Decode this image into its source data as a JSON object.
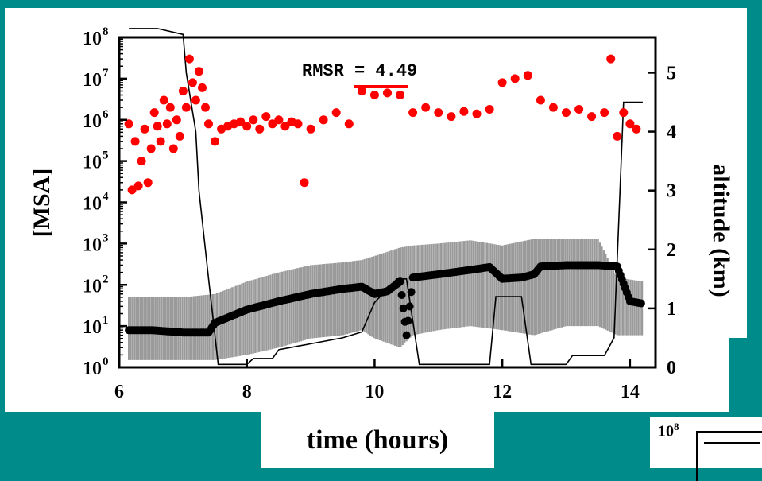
{
  "colors": {
    "background": "#008b8b",
    "panel": "#ffffff",
    "msa_points": "#ff0000",
    "model": "#000000",
    "uncertainty_band": "#9a9a9a",
    "altitude_line": "#000000"
  },
  "xlabel": "time (hours)",
  "inset_label": "10",
  "inset_label_exp": "8",
  "chart_data": {
    "type": "scatter",
    "title": "",
    "xlabel": "time (hours)",
    "ylabel_left": "[MSA]",
    "ylabel_right": "altitude (km)",
    "annotation": "RMSR = 4.49",
    "xlim": [
      6,
      14.4
    ],
    "ylim_left": [
      1,
      100000000
    ],
    "yscale_left": "log",
    "ylim_right": [
      0,
      5.6
    ],
    "x_ticks": [
      "6",
      "8",
      "10",
      "12",
      "14"
    ],
    "x_tick_values": [
      6,
      8,
      10,
      12,
      14
    ],
    "y_left_ticks": [
      {
        "base": "10",
        "exp": "0",
        "value": 1
      },
      {
        "base": "10",
        "exp": "1",
        "value": 10
      },
      {
        "base": "10",
        "exp": "2",
        "value": 100
      },
      {
        "base": "10",
        "exp": "3",
        "value": 1000
      },
      {
        "base": "10",
        "exp": "4",
        "value": 10000
      },
      {
        "base": "10",
        "exp": "5",
        "value": 100000
      },
      {
        "base": "10",
        "exp": "6",
        "value": 1000000
      },
      {
        "base": "10",
        "exp": "7",
        "value": 10000000
      },
      {
        "base": "10",
        "exp": "8",
        "value": 100000000
      }
    ],
    "y_right_ticks": [
      "0",
      "1",
      "2",
      "3",
      "4",
      "5"
    ],
    "y_right_tick_values": [
      0,
      1,
      2,
      3,
      4,
      5
    ],
    "grid": false,
    "series": [
      {
        "kind": "observed_msa",
        "axis": "left",
        "x": [
          6.15,
          6.2,
          6.25,
          6.3,
          6.35,
          6.4,
          6.45,
          6.5,
          6.55,
          6.6,
          6.65,
          6.7,
          6.75,
          6.8,
          6.85,
          6.9,
          6.95,
          7.0,
          7.05,
          7.1,
          7.15,
          7.2,
          7.25,
          7.3,
          7.35,
          7.4,
          7.5,
          7.6,
          7.7,
          7.8,
          7.9,
          8.0,
          8.1,
          8.2,
          8.3,
          8.4,
          8.5,
          8.6,
          8.7,
          8.8,
          8.9,
          9.0,
          9.2,
          9.4,
          9.6,
          9.8,
          10.0,
          10.2,
          10.4,
          10.6,
          10.8,
          11.0,
          11.2,
          11.4,
          11.6,
          11.8,
          12.0,
          12.2,
          12.4,
          12.6,
          12.8,
          13.0,
          13.2,
          13.4,
          13.6,
          13.7,
          13.8,
          13.9,
          14.0,
          14.1
        ],
        "y": [
          800000,
          20000,
          300000,
          25000,
          100000,
          600000,
          30000,
          200000,
          1500000,
          700000,
          300000,
          3000000,
          800000,
          2000000,
          200000,
          1000000,
          400000,
          5000000,
          2000000,
          30000000,
          8000000,
          3000000,
          15000000,
          6000000,
          2000000,
          800000,
          300000,
          600000,
          700000,
          800000,
          900000,
          700000,
          1000000,
          600000,
          1200000,
          800000,
          1000000,
          700000,
          900000,
          800000,
          30000,
          600000,
          1000000,
          1500000,
          800000,
          5000000,
          4000000,
          4500000,
          4000000,
          1500000,
          2000000,
          1500000,
          1200000,
          1600000,
          1400000,
          1800000,
          8000000,
          10000000,
          12000000,
          3000000,
          2000000,
          1500000,
          1800000,
          1200000,
          1500000,
          30000000,
          400000,
          1500000,
          800000,
          600000
        ]
      },
      {
        "kind": "modeled_msa",
        "axis": "left",
        "x": [
          6.15,
          6.5,
          7.0,
          7.4,
          7.5,
          8.0,
          8.5,
          9.0,
          9.5,
          9.8,
          10.0,
          10.2,
          10.4,
          10.5,
          10.6,
          11.0,
          11.5,
          11.8,
          12.0,
          12.3,
          12.5,
          12.6,
          13.0,
          13.5,
          13.8,
          14.0,
          14.2
        ],
        "y": [
          8,
          8,
          7,
          7,
          12,
          25,
          40,
          60,
          80,
          90,
          60,
          70,
          120,
          6,
          150,
          180,
          230,
          270,
          140,
          150,
          180,
          280,
          300,
          300,
          280,
          40,
          35
        ]
      },
      {
        "kind": "uncertainty_band",
        "axis": "left",
        "x": [
          6.15,
          7.0,
          7.5,
          8.0,
          8.5,
          9.0,
          9.5,
          9.8,
          10.0,
          10.4,
          10.6,
          11.0,
          11.5,
          12.0,
          12.5,
          13.0,
          13.5,
          13.8,
          14.2
        ],
        "lower": [
          1.5,
          1.5,
          1.5,
          2,
          3,
          5,
          6,
          8,
          5,
          3,
          6,
          8,
          10,
          8,
          6,
          10,
          10,
          6,
          6
        ],
        "upper": [
          50,
          50,
          60,
          120,
          200,
          300,
          350,
          400,
          500,
          800,
          900,
          1000,
          1200,
          900,
          1300,
          1300,
          1300,
          150,
          120
        ]
      },
      {
        "kind": "altitude",
        "axis": "right",
        "x": [
          6.15,
          6.6,
          7.0,
          7.05,
          7.2,
          7.25,
          7.4,
          7.55,
          8.0,
          8.1,
          8.4,
          8.5,
          9.0,
          9.5,
          9.8,
          10.0,
          10.35,
          10.5,
          10.7,
          11.8,
          11.9,
          12.3,
          12.45,
          12.5,
          12.6,
          13.0,
          13.1,
          13.6,
          13.75,
          13.9,
          14.2
        ],
        "y": [
          5.75,
          5.75,
          5.65,
          5.0,
          4.0,
          3.0,
          1.5,
          0.05,
          0.05,
          0.15,
          0.15,
          0.3,
          0.4,
          0.5,
          0.6,
          1.1,
          1.5,
          1.5,
          0.05,
          0.05,
          1.2,
          1.2,
          0.05,
          0.05,
          0.05,
          0.05,
          0.2,
          0.2,
          0.5,
          4.5,
          4.5
        ]
      }
    ]
  }
}
